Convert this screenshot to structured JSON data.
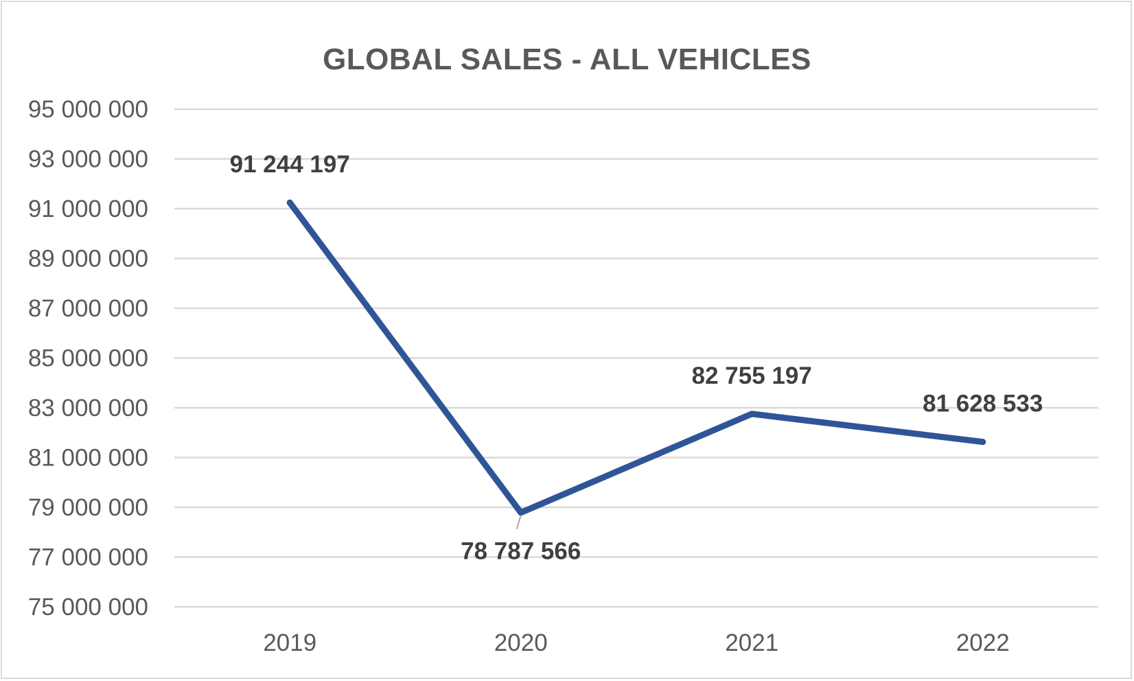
{
  "chart_data": {
    "type": "line",
    "title": "GLOBAL SALES - ALL VEHICLES",
    "xlabel": "",
    "ylabel": "",
    "categories": [
      "2019",
      "2020",
      "2021",
      "2022"
    ],
    "series": [
      {
        "values": [
          91244197,
          78787566,
          82755197,
          81628533
        ],
        "labels": [
          "91 244 197",
          "78 787 566",
          "82 755 197",
          "81 628 533"
        ],
        "color": "#2f5597"
      }
    ],
    "ylim": [
      75000000,
      95000000
    ],
    "yticks": [
      95000000,
      93000000,
      91000000,
      89000000,
      87000000,
      85000000,
      83000000,
      81000000,
      79000000,
      77000000,
      75000000
    ],
    "ytick_labels": [
      "95 000 000",
      "93 000 000",
      "91 000 000",
      "89 000 000",
      "87 000 000",
      "85 000 000",
      "83 000 000",
      "81 000 000",
      "79 000 000",
      "77 000 000",
      "75 000 000"
    ],
    "grid": true,
    "legend": "none"
  }
}
